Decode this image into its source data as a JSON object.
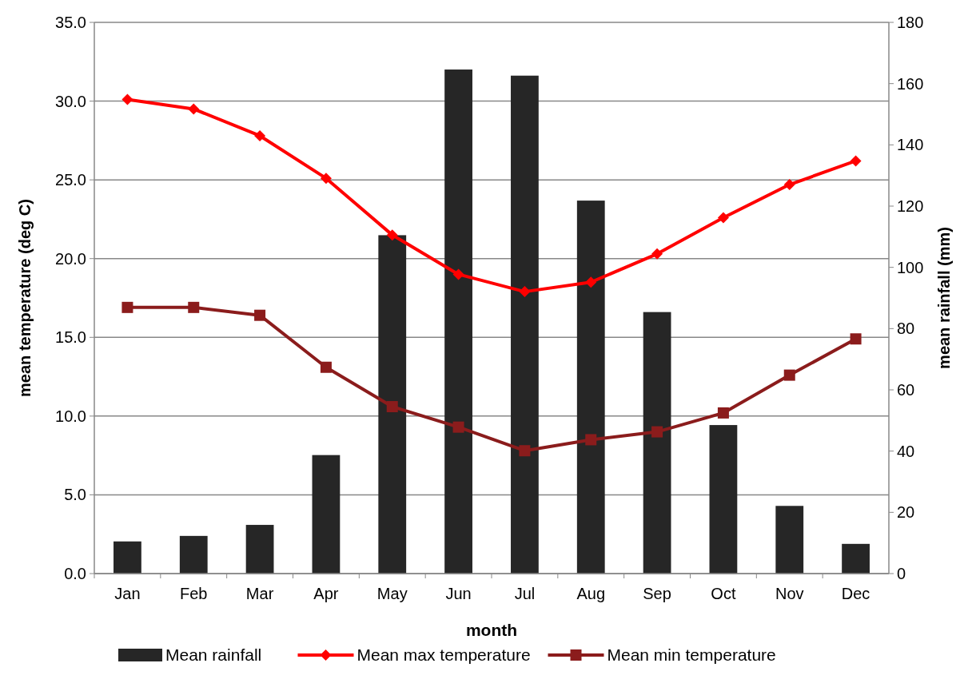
{
  "chart_data": {
    "type": "bar",
    "categories": [
      "Jan",
      "Feb",
      "Mar",
      "Apr",
      "May",
      "Jun",
      "Jul",
      "Aug",
      "Sep",
      "Oct",
      "Nov",
      "Dec"
    ],
    "series": [
      {
        "name": "Mean rainfall",
        "axis": "y2",
        "color": "#262626",
        "values": [
          10.5,
          12.3,
          15.9,
          38.7,
          110.5,
          164.6,
          162.6,
          121.8,
          85.4,
          48.5,
          22.1,
          9.7
        ]
      },
      {
        "name": "Mean max temperature",
        "type": "line",
        "marker": "diamond",
        "color": "#ff0000",
        "values": [
          30.1,
          29.5,
          27.8,
          25.1,
          21.5,
          19.0,
          17.9,
          18.5,
          20.3,
          22.6,
          24.7,
          26.2
        ]
      },
      {
        "name": "Mean min temperature",
        "type": "line",
        "marker": "square",
        "color": "#8b1c1c",
        "values": [
          16.9,
          16.9,
          16.4,
          13.1,
          10.6,
          9.3,
          7.8,
          8.5,
          9.0,
          10.2,
          12.6,
          14.9
        ]
      }
    ],
    "xlabel": "month",
    "ylabel": "mean temperature (deg C)",
    "y2label": "mean rainfall (mm)",
    "ylim": [
      0,
      35
    ],
    "yticks": [
      {
        "value": 0,
        "label": "0.0"
      },
      {
        "value": 5,
        "label": "5.0"
      },
      {
        "value": 10,
        "label": "10.0"
      },
      {
        "value": 15,
        "label": "15.0"
      },
      {
        "value": 20,
        "label": "20.0"
      },
      {
        "value": 25,
        "label": "25.0"
      },
      {
        "value": 30,
        "label": "30.0"
      },
      {
        "value": 35,
        "label": "35.0"
      }
    ],
    "y2lim": [
      0,
      180
    ],
    "y2ticks": [
      0,
      20,
      40,
      60,
      80,
      100,
      120,
      140,
      160,
      180
    ],
    "grid": "y",
    "legend": "bottom"
  }
}
